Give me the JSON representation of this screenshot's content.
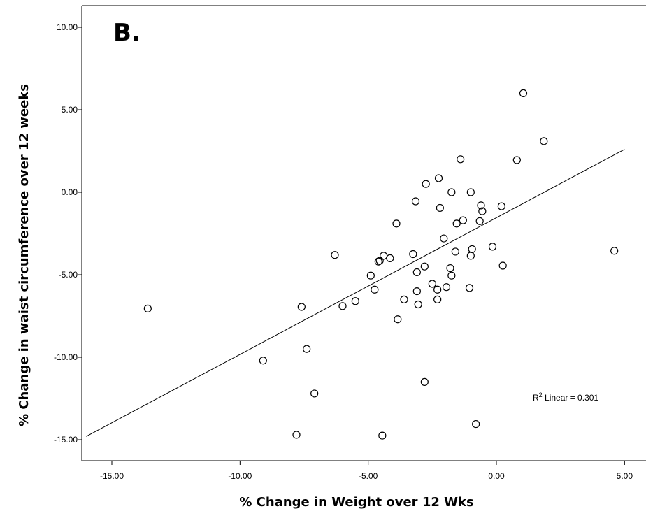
{
  "chart_data": {
    "type": "scatter",
    "panel_label": "B.",
    "xlabel": "% Change in Weight over 12 Wks",
    "ylabel": "% Change in waist circumference over 12 weeks",
    "xlim": [
      -16.0,
      5.0
    ],
    "ylim": [
      -16.0,
      11.0
    ],
    "x_ticks": [
      -15,
      -10,
      -5,
      0,
      5
    ],
    "x_tick_labels": [
      "-15.00",
      "-10.00",
      "-5.00",
      "0.00",
      "5.00"
    ],
    "y_ticks": [
      10,
      5,
      0,
      -5,
      -10,
      -15
    ],
    "y_tick_labels": [
      "10.00",
      "5.00",
      "0.00",
      "-5.00",
      "-10.00",
      "-15.00"
    ],
    "grid": false,
    "annotation": {
      "prefix": "R",
      "sup": "2",
      "suffix": " Linear = 0.301"
    },
    "fit_line": {
      "x": [
        -16.0,
        5.0
      ],
      "y": [
        -14.8,
        2.6
      ]
    },
    "points": [
      {
        "x": -13.6,
        "y": -7.05
      },
      {
        "x": -9.1,
        "y": -10.2
      },
      {
        "x": -7.8,
        "y": -14.7
      },
      {
        "x": -7.6,
        "y": -6.95
      },
      {
        "x": -7.4,
        "y": -9.5
      },
      {
        "x": -7.1,
        "y": -12.2
      },
      {
        "x": -6.3,
        "y": -3.8
      },
      {
        "x": -6.0,
        "y": -6.9
      },
      {
        "x": -5.5,
        "y": -6.6
      },
      {
        "x": -4.9,
        "y": -5.05
      },
      {
        "x": -4.75,
        "y": -5.9
      },
      {
        "x": -4.6,
        "y": -4.2
      },
      {
        "x": -4.55,
        "y": -4.15
      },
      {
        "x": -4.45,
        "y": -14.75
      },
      {
        "x": -4.4,
        "y": -3.85
      },
      {
        "x": -4.15,
        "y": -4.0
      },
      {
        "x": -3.9,
        "y": -1.9
      },
      {
        "x": -3.85,
        "y": -7.7
      },
      {
        "x": -3.6,
        "y": -6.5
      },
      {
        "x": -3.25,
        "y": -3.75
      },
      {
        "x": -3.15,
        "y": -0.55
      },
      {
        "x": -3.1,
        "y": -4.85
      },
      {
        "x": -3.1,
        "y": -6.0
      },
      {
        "x": -3.05,
        "y": -6.8
      },
      {
        "x": -2.8,
        "y": -4.5
      },
      {
        "x": -2.8,
        "y": -11.5
      },
      {
        "x": -2.75,
        "y": 0.5
      },
      {
        "x": -2.5,
        "y": -5.55
      },
      {
        "x": -2.3,
        "y": -5.9
      },
      {
        "x": -2.3,
        "y": -6.5
      },
      {
        "x": -2.25,
        "y": 0.85
      },
      {
        "x": -2.2,
        "y": -0.95
      },
      {
        "x": -2.05,
        "y": -2.8
      },
      {
        "x": -1.95,
        "y": -5.75
      },
      {
        "x": -1.8,
        "y": -4.6
      },
      {
        "x": -1.75,
        "y": -5.05
      },
      {
        "x": -1.75,
        "y": 0.0
      },
      {
        "x": -1.6,
        "y": -3.6
      },
      {
        "x": -1.55,
        "y": -1.9
      },
      {
        "x": -1.4,
        "y": 2.0
      },
      {
        "x": -1.3,
        "y": -1.7
      },
      {
        "x": -1.05,
        "y": -5.8
      },
      {
        "x": -1.0,
        "y": 0.0
      },
      {
        "x": -1.0,
        "y": -3.85
      },
      {
        "x": -0.95,
        "y": -3.45
      },
      {
        "x": -0.8,
        "y": -14.05
      },
      {
        "x": -0.65,
        "y": -1.75
      },
      {
        "x": -0.6,
        "y": -0.8
      },
      {
        "x": -0.55,
        "y": -1.15
      },
      {
        "x": -0.15,
        "y": -3.3
      },
      {
        "x": 0.2,
        "y": -0.85
      },
      {
        "x": 0.25,
        "y": -4.45
      },
      {
        "x": 0.8,
        "y": 1.95
      },
      {
        "x": 1.05,
        "y": 6.0
      },
      {
        "x": 1.85,
        "y": 3.1
      },
      {
        "x": 4.6,
        "y": -3.55
      }
    ]
  }
}
